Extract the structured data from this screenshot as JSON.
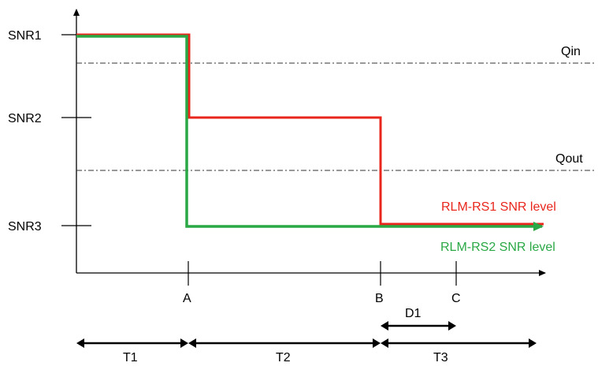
{
  "y_levels": [
    "SNR1",
    "SNR2",
    "SNR3"
  ],
  "thresholds": {
    "qin": "Qin",
    "qout": "Qout"
  },
  "x_points": [
    "A",
    "B",
    "C"
  ],
  "duration": "D1",
  "periods": [
    "T1",
    "T2",
    "T3"
  ],
  "series": {
    "rs1": {
      "label": "RLM-RS1 SNR level",
      "color": "#e8261c"
    },
    "rs2": {
      "label": "RLM-RS2 SNR level",
      "color": "#2aa845"
    }
  }
}
